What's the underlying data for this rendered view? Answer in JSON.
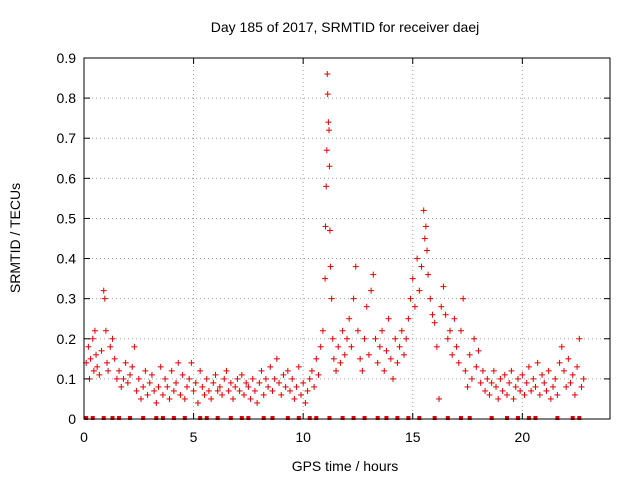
{
  "chart_data": {
    "type": "scatter",
    "title": "Day 185 of 2017, SRMTID for receiver daej",
    "xlabel": "GPS time / hours",
    "ylabel": "SRMTID / TECUs",
    "xlim": [
      0,
      24
    ],
    "ylim": [
      0,
      0.9
    ],
    "xticks": [
      0,
      5,
      10,
      15,
      20
    ],
    "yticks": [
      0,
      0.1,
      0.2,
      0.3,
      0.4,
      0.5,
      0.6,
      0.7,
      0.8,
      0.9
    ],
    "grid": true,
    "marker": "+",
    "color": "#e00000",
    "series": [
      {
        "name": "SRMTID",
        "points": [
          [
            0.1,
            0.14
          ],
          [
            0.2,
            0.18
          ],
          [
            0.25,
            0.1
          ],
          [
            0.3,
            0.15
          ],
          [
            0.4,
            0.2
          ],
          [
            0.45,
            0.12
          ],
          [
            0.5,
            0.22
          ],
          [
            0.55,
            0.16
          ],
          [
            0.6,
            0.13
          ],
          [
            0.7,
            0.11
          ],
          [
            0.8,
            0.17
          ],
          [
            0.9,
            0.32
          ],
          [
            0.95,
            0.3
          ],
          [
            1.0,
            0.22
          ],
          [
            1.05,
            0.14
          ],
          [
            1.1,
            0.12
          ],
          [
            1.2,
            0.18
          ],
          [
            1.3,
            0.2
          ],
          [
            1.4,
            0.15
          ],
          [
            1.5,
            0.1
          ],
          [
            1.6,
            0.12
          ],
          [
            1.7,
            0.08
          ],
          [
            1.8,
            0.1
          ],
          [
            1.9,
            0.14
          ],
          [
            2.0,
            0.09
          ],
          [
            2.1,
            0.11
          ],
          [
            2.2,
            0.13
          ],
          [
            2.3,
            0.18
          ],
          [
            2.4,
            0.07
          ],
          [
            2.5,
            0.1
          ],
          [
            2.6,
            0.05
          ],
          [
            2.7,
            0.08
          ],
          [
            2.8,
            0.12
          ],
          [
            2.9,
            0.06
          ],
          [
            3.0,
            0.09
          ],
          [
            3.1,
            0.11
          ],
          [
            3.2,
            0.07
          ],
          [
            3.3,
            0.04
          ],
          [
            3.4,
            0.08
          ],
          [
            3.5,
            0.13
          ],
          [
            3.6,
            0.06
          ],
          [
            3.7,
            0.1
          ],
          [
            3.8,
            0.08
          ],
          [
            3.9,
            0.05
          ],
          [
            4.0,
            0.12
          ],
          [
            4.1,
            0.07
          ],
          [
            4.2,
            0.09
          ],
          [
            4.3,
            0.14
          ],
          [
            4.4,
            0.06
          ],
          [
            4.5,
            0.11
          ],
          [
            4.6,
            0.05
          ],
          [
            4.7,
            0.08
          ],
          [
            4.8,
            0.1
          ],
          [
            4.9,
            0.14
          ],
          [
            5.0,
            0.07
          ],
          [
            5.1,
            0.09
          ],
          [
            5.2,
            0.04
          ],
          [
            5.3,
            0.12
          ],
          [
            5.4,
            0.08
          ],
          [
            5.5,
            0.06
          ],
          [
            5.6,
            0.1
          ],
          [
            5.7,
            0.07
          ],
          [
            5.8,
            0.05
          ],
          [
            5.9,
            0.09
          ],
          [
            6.0,
            0.11
          ],
          [
            6.1,
            0.07
          ],
          [
            6.2,
            0.08
          ],
          [
            6.3,
            0.06
          ],
          [
            6.4,
            0.1
          ],
          [
            6.5,
            0.12
          ],
          [
            6.6,
            0.07
          ],
          [
            6.7,
            0.09
          ],
          [
            6.8,
            0.05
          ],
          [
            6.9,
            0.08
          ],
          [
            7.0,
            0.1
          ],
          [
            7.1,
            0.07
          ],
          [
            7.2,
            0.11
          ],
          [
            7.3,
            0.06
          ],
          [
            7.4,
            0.09
          ],
          [
            7.5,
            0.08
          ],
          [
            7.6,
            0.05
          ],
          [
            7.7,
            0.1
          ],
          [
            7.8,
            0.07
          ],
          [
            7.9,
            0.04
          ],
          [
            8.0,
            0.09
          ],
          [
            8.1,
            0.12
          ],
          [
            8.2,
            0.06
          ],
          [
            8.3,
            0.1
          ],
          [
            8.4,
            0.08
          ],
          [
            8.5,
            0.13
          ],
          [
            8.6,
            0.07
          ],
          [
            8.7,
            0.1
          ],
          [
            8.8,
            0.15
          ],
          [
            8.9,
            0.09
          ],
          [
            9.0,
            0.06
          ],
          [
            9.1,
            0.11
          ],
          [
            9.2,
            0.08
          ],
          [
            9.3,
            0.12
          ],
          [
            9.4,
            0.07
          ],
          [
            9.5,
            0.1
          ],
          [
            9.6,
            0.05
          ],
          [
            9.7,
            0.08
          ],
          [
            9.8,
            0.13
          ],
          [
            9.9,
            0.06
          ],
          [
            10.0,
            0.09
          ],
          [
            10.1,
            0.04
          ],
          [
            10.2,
            0.07
          ],
          [
            10.3,
            0.1
          ],
          [
            10.4,
            0.12
          ],
          [
            10.5,
            0.08
          ],
          [
            10.6,
            0.15
          ],
          [
            10.7,
            0.11
          ],
          [
            10.8,
            0.18
          ],
          [
            10.9,
            0.22
          ],
          [
            11.0,
            0.35
          ],
          [
            11.02,
            0.48
          ],
          [
            11.05,
            0.58
          ],
          [
            11.08,
            0.67
          ],
          [
            11.1,
            0.86
          ],
          [
            11.12,
            0.81
          ],
          [
            11.15,
            0.74
          ],
          [
            11.18,
            0.72
          ],
          [
            11.2,
            0.63
          ],
          [
            11.22,
            0.47
          ],
          [
            11.25,
            0.38
          ],
          [
            11.3,
            0.3
          ],
          [
            11.35,
            0.2
          ],
          [
            11.4,
            0.15
          ],
          [
            11.5,
            0.12
          ],
          [
            11.6,
            0.18
          ],
          [
            11.7,
            0.14
          ],
          [
            11.8,
            0.22
          ],
          [
            11.9,
            0.16
          ],
          [
            12.0,
            0.2
          ],
          [
            12.1,
            0.25
          ],
          [
            12.2,
            0.18
          ],
          [
            12.3,
            0.3
          ],
          [
            12.4,
            0.38
          ],
          [
            12.5,
            0.22
          ],
          [
            12.6,
            0.15
          ],
          [
            12.7,
            0.12
          ],
          [
            12.8,
            0.2
          ],
          [
            12.9,
            0.28
          ],
          [
            13.0,
            0.16
          ],
          [
            13.1,
            0.32
          ],
          [
            13.2,
            0.36
          ],
          [
            13.3,
            0.2
          ],
          [
            13.4,
            0.14
          ],
          [
            13.5,
            0.18
          ],
          [
            13.6,
            0.22
          ],
          [
            13.7,
            0.12
          ],
          [
            13.8,
            0.17
          ],
          [
            13.9,
            0.25
          ],
          [
            14.0,
            0.15
          ],
          [
            14.1,
            0.1
          ],
          [
            14.2,
            0.2
          ],
          [
            14.3,
            0.14
          ],
          [
            14.4,
            0.18
          ],
          [
            14.5,
            0.22
          ],
          [
            14.6,
            0.16
          ],
          [
            14.7,
            0.2
          ],
          [
            14.8,
            0.25
          ],
          [
            14.9,
            0.3
          ],
          [
            15.0,
            0.35
          ],
          [
            15.1,
            0.28
          ],
          [
            15.2,
            0.4
          ],
          [
            15.3,
            0.32
          ],
          [
            15.4,
            0.38
          ],
          [
            15.5,
            0.52
          ],
          [
            15.55,
            0.45
          ],
          [
            15.6,
            0.48
          ],
          [
            15.65,
            0.42
          ],
          [
            15.7,
            0.36
          ],
          [
            15.8,
            0.3
          ],
          [
            15.9,
            0.26
          ],
          [
            16.0,
            0.24
          ],
          [
            16.1,
            0.18
          ],
          [
            16.2,
            0.05
          ],
          [
            16.3,
            0.28
          ],
          [
            16.4,
            0.33
          ],
          [
            16.5,
            0.26
          ],
          [
            16.6,
            0.2
          ],
          [
            16.7,
            0.22
          ],
          [
            16.8,
            0.16
          ],
          [
            16.9,
            0.25
          ],
          [
            17.0,
            0.18
          ],
          [
            17.1,
            0.14
          ],
          [
            17.2,
            0.22
          ],
          [
            17.3,
            0.3
          ],
          [
            17.4,
            0.12
          ],
          [
            17.5,
            0.08
          ],
          [
            17.6,
            0.16
          ],
          [
            17.7,
            0.1
          ],
          [
            17.8,
            0.2
          ],
          [
            17.9,
            0.13
          ],
          [
            18.0,
            0.17
          ],
          [
            18.1,
            0.09
          ],
          [
            18.2,
            0.12
          ],
          [
            18.3,
            0.07
          ],
          [
            18.4,
            0.1
          ],
          [
            18.5,
            0.06
          ],
          [
            18.6,
            0.09
          ],
          [
            18.7,
            0.12
          ],
          [
            18.8,
            0.08
          ],
          [
            18.9,
            0.05
          ],
          [
            19.0,
            0.1
          ],
          [
            19.1,
            0.07
          ],
          [
            19.2,
            0.11
          ],
          [
            19.3,
            0.06
          ],
          [
            19.4,
            0.09
          ],
          [
            19.5,
            0.12
          ],
          [
            19.6,
            0.05
          ],
          [
            19.7,
            0.08
          ],
          [
            19.8,
            0.1
          ],
          [
            19.9,
            0.07
          ],
          [
            20.0,
            0.11
          ],
          [
            20.1,
            0.06
          ],
          [
            20.2,
            0.09
          ],
          [
            20.3,
            0.13
          ],
          [
            20.4,
            0.07
          ],
          [
            20.5,
            0.1
          ],
          [
            20.6,
            0.08
          ],
          [
            20.7,
            0.14
          ],
          [
            20.8,
            0.06
          ],
          [
            20.9,
            0.11
          ],
          [
            21.0,
            0.09
          ],
          [
            21.1,
            0.07
          ],
          [
            21.2,
            0.12
          ],
          [
            21.3,
            0.05
          ],
          [
            21.4,
            0.08
          ],
          [
            21.5,
            0.1
          ],
          [
            21.6,
            0.06
          ],
          [
            21.7,
            0.14
          ],
          [
            21.8,
            0.18
          ],
          [
            21.9,
            0.12
          ],
          [
            22.0,
            0.08
          ],
          [
            22.1,
            0.15
          ],
          [
            22.2,
            0.09
          ],
          [
            22.3,
            0.11
          ],
          [
            22.4,
            0.06
          ],
          [
            22.5,
            0.13
          ],
          [
            22.6,
            0.2
          ],
          [
            22.7,
            0.08
          ],
          [
            22.8,
            0.1
          ]
        ]
      }
    ],
    "zero_points": [
      0.1,
      0.4,
      0.9,
      1.3,
      1.6,
      2.1,
      2.7,
      3.3,
      3.6,
      4.1,
      4.6,
      5.3,
      5.6,
      6.1,
      6.7,
      7.2,
      7.5,
      8.2,
      8.6,
      9.3,
      9.8,
      10.3,
      10.6,
      11.2,
      11.8,
      12.3,
      12.8,
      13.4,
      13.8,
      14.3,
      14.8,
      15.3,
      16.0,
      16.6,
      17.2,
      17.6,
      18.6,
      19.3,
      19.8,
      20.3,
      20.6,
      21.6,
      22.3,
      22.6
    ]
  }
}
